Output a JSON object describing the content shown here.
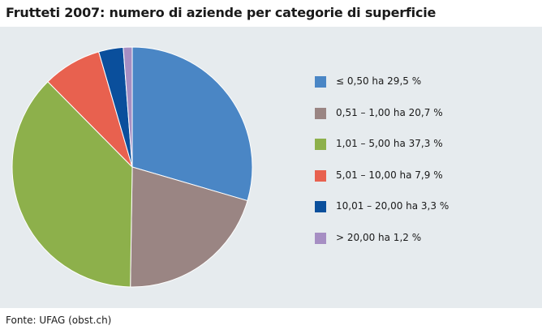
{
  "title": "Frutteti 2007: numero di aziende per categorie di superficie",
  "source": "Fonte: UFAG (obst.ch)",
  "chart_data": {
    "type": "pie",
    "title": "Frutteti 2007: numero di aziende per categorie di superficie",
    "legend_position": "right",
    "start_angle_deg": 0,
    "direction": "clockwise",
    "slices": [
      {
        "label": "≤ 0,50 ha 29,5 %",
        "value": 29.5,
        "color": "#4a86c5"
      },
      {
        "label": "0,51 – 1,00 ha 20,7 %",
        "value": 20.7,
        "color": "#9a8583"
      },
      {
        "label": "1,01 – 5,00 ha 37,3 %",
        "value": 37.3,
        "color": "#8db04b"
      },
      {
        "label": "5,01 – 10,00 ha 7,9 %",
        "value": 7.9,
        "color": "#e8614f"
      },
      {
        "label": "10,01 – 20,00 ha 3,3 %",
        "value": 3.3,
        "color": "#0a4f9c"
      },
      {
        "label": "> 20,00 ha 1,2 %",
        "value": 1.2,
        "color": "#a68ec3"
      }
    ]
  }
}
